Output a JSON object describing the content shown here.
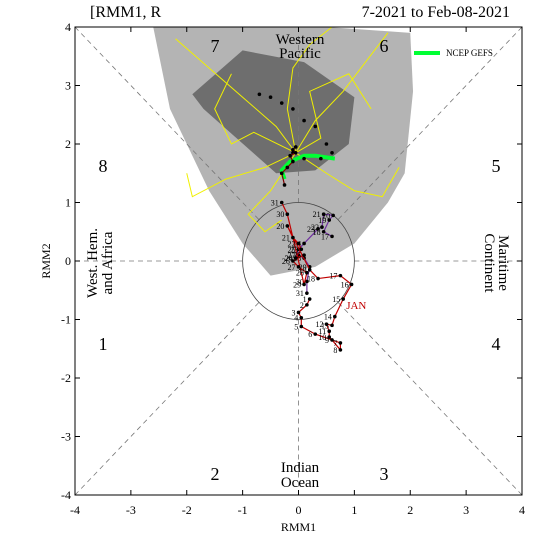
{
  "chart_data": {
    "type": "line",
    "title_left": "[RMM1, R",
    "title_right": "7-2021 to Feb-08-2021",
    "xlabel": "RMM1",
    "ylabel": "RMM2",
    "xlim": [
      -4,
      4
    ],
    "ylim": [
      -4,
      4
    ],
    "xticks": [
      -4,
      -3,
      -2,
      -1,
      0,
      1,
      2,
      3,
      4
    ],
    "yticks": [
      -4,
      -3,
      -2,
      -1,
      0,
      1,
      2,
      3,
      4
    ],
    "phases": [
      "1",
      "2",
      "3",
      "4",
      "5",
      "6",
      "7",
      "8"
    ],
    "regions": [
      "Western",
      "Pacific",
      "West. Hem.",
      "and Africa",
      "Maritime",
      "Continent",
      "Indian",
      "Ocean"
    ],
    "areas": [
      {
        "color": "#b4b4b4",
        "x": [
          -2.6,
          0.5,
          2.0,
          2.05,
          1.9,
          1.6,
          1.0,
          0.3,
          -0.5,
          -1.0,
          -1.6,
          -2.3
        ],
        "y": [
          4.0,
          4.0,
          3.9,
          2.9,
          1.5,
          1.0,
          0.3,
          -0.1,
          -0.25,
          0.3,
          1.2,
          2.6
        ]
      },
      {
        "color": "#6e6e6e",
        "x": [
          -1.9,
          -1.0,
          0.1,
          1.0,
          0.9,
          0.3,
          -0.4,
          -1.7
        ],
        "y": [
          2.85,
          3.6,
          3.4,
          2.8,
          2.0,
          1.55,
          1.5,
          2.6
        ]
      }
    ],
    "ensemble": [
      {
        "color": "#f0f000",
        "x": [
          -0.05,
          -0.4,
          -1.0,
          -1.6,
          -2.2
        ],
        "y": [
          1.85,
          2.3,
          2.8,
          3.3,
          3.8
        ]
      },
      {
        "color": "#f0f000",
        "x": [
          -0.05,
          0.3,
          0.8,
          1.2,
          1.6
        ],
        "y": [
          1.85,
          2.4,
          2.9,
          3.4,
          3.9
        ]
      },
      {
        "color": "#f0f000",
        "x": [
          -0.05,
          -0.6,
          -1.3,
          -1.9,
          -2.0
        ],
        "y": [
          1.85,
          1.6,
          1.4,
          1.1,
          1.5
        ]
      },
      {
        "color": "#f0f000",
        "x": [
          -0.05,
          0.5,
          1.0,
          1.5,
          1.8
        ],
        "y": [
          1.85,
          1.5,
          1.2,
          1.1,
          1.6
        ]
      },
      {
        "color": "#f0f000",
        "x": [
          -0.05,
          -0.2,
          -0.1,
          0.2,
          0.6
        ],
        "y": [
          1.85,
          2.6,
          3.3,
          3.7,
          4.0
        ]
      },
      {
        "color": "#f0f000",
        "x": [
          -0.05,
          -0.8,
          -1.2,
          -1.5,
          -1.2
        ],
        "y": [
          1.85,
          2.2,
          2.0,
          2.6,
          3.2
        ]
      },
      {
        "color": "#f0f000",
        "x": [
          -0.05,
          0.4,
          0.2,
          0.9,
          1.3
        ],
        "y": [
          1.85,
          2.1,
          2.9,
          3.2,
          2.6
        ]
      },
      {
        "color": "#f0f000",
        "x": [
          -0.05,
          -0.5,
          -0.9,
          -0.6,
          -0.3
        ],
        "y": [
          1.85,
          1.2,
          0.8,
          0.5,
          0.7
        ]
      }
    ],
    "gefs": {
      "name": "NCEP GEFS",
      "color": "#00ff33",
      "x": [
        0.65,
        0.3,
        0.1,
        -0.15,
        -0.3,
        -0.25
      ],
      "y": [
        1.75,
        1.8,
        1.8,
        1.7,
        1.55,
        1.4
      ]
    },
    "mean_dots": {
      "x": [
        -0.7,
        -0.5,
        -0.3,
        -0.1,
        0.1,
        0.3,
        0.5,
        0.6,
        0.4,
        0.1,
        -0.1,
        -0.3
      ],
      "y": [
        2.85,
        2.8,
        2.7,
        2.6,
        2.4,
        2.3,
        2.0,
        1.85,
        1.75,
        1.75,
        1.85,
        1.5
      ]
    },
    "series": [
      {
        "color": "#7030a0",
        "x": [
          0.6,
          0.45,
          0.55,
          0.62,
          0.45,
          0.42,
          0.35,
          0.1,
          0.0,
          -0.05,
          0.0,
          0.1,
          0.2,
          0.15,
          0.15
        ],
        "y": [
          0.42,
          0.5,
          0.7,
          0.78,
          0.8,
          0.58,
          0.55,
          0.3,
          0.2,
          0.05,
          0.1,
          0.05,
          -0.1,
          -0.35,
          -0.55
        ],
        "labels": [
          "17",
          "18",
          "19",
          "20",
          "21",
          "22",
          "23",
          "24",
          "25",
          "26",
          "27",
          "28",
          "29",
          "30",
          "31"
        ]
      },
      {
        "name": "JAN",
        "color": "#c00000",
        "x": [
          0.2,
          0.15,
          0.0,
          0.05,
          0.05,
          0.3,
          0.75,
          0.75,
          0.6,
          0.55,
          0.55,
          0.5,
          0.6,
          0.65,
          0.8,
          0.95,
          0.75,
          0.35,
          0.2,
          -0.2,
          -0.1,
          0.0,
          0.05,
          -0.05,
          0.1,
          -0.1,
          0.0,
          0.15,
          0.1,
          -0.2,
          -0.3
        ],
        "y": [
          -0.65,
          -0.75,
          -0.88,
          -0.97,
          -1.12,
          -1.25,
          -1.4,
          -1.52,
          -1.35,
          -1.3,
          -1.2,
          -1.08,
          -1.1,
          -0.95,
          -0.65,
          -0.4,
          -0.25,
          -0.3,
          -0.15,
          0.6,
          0.4,
          0.3,
          0.2,
          0.05,
          0.1,
          0.0,
          -0.1,
          -0.2,
          -0.4,
          0.8,
          1.0
        ],
        "labels": [
          "1",
          "2",
          "3",
          "4",
          "5",
          "6",
          "7",
          "8",
          "9",
          "10",
          "11",
          "12",
          "13",
          "14",
          "15",
          "16",
          "17",
          "18",
          "19",
          "20",
          "21",
          "22",
          "23",
          "24",
          "25",
          "26",
          "27",
          "28",
          "29",
          "30",
          "31"
        ]
      },
      {
        "color": "#800000",
        "x": [
          -0.25,
          -0.3,
          -0.2,
          -0.1,
          -0.15,
          -0.05,
          -0.1,
          -0.05
        ],
        "y": [
          1.3,
          1.5,
          1.6,
          1.7,
          1.8,
          1.85,
          1.9,
          1.95
        ]
      }
    ]
  }
}
